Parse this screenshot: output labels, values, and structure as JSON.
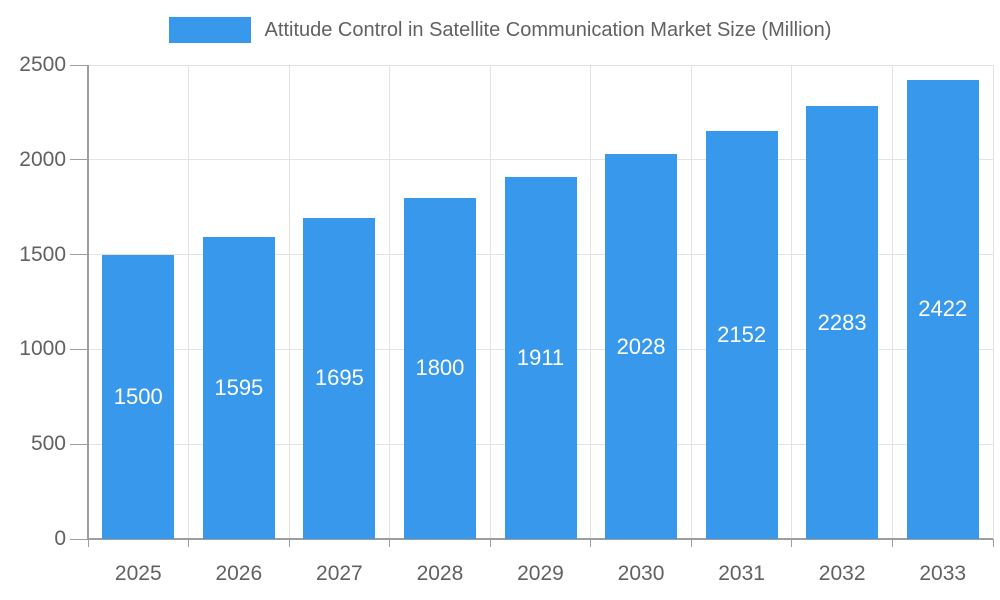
{
  "chart_data": {
    "type": "bar",
    "title": "Attitude Control in Satellite Communication Market Size (Million)",
    "categories": [
      "2025",
      "2026",
      "2027",
      "2028",
      "2029",
      "2030",
      "2031",
      "2032",
      "2033"
    ],
    "series": [
      {
        "name": "Attitude Control in Satellite Communication Market Size (Million)",
        "values": [
          1500,
          1595,
          1695,
          1800,
          1911,
          2028,
          2152,
          2283,
          2422
        ]
      }
    ],
    "xlabel": "",
    "ylabel": "",
    "ylim": [
      0,
      2500
    ],
    "yticks": [
      0,
      500,
      1000,
      1500,
      2000,
      2500
    ],
    "grid": true,
    "legend_position": "top",
    "value_labels": "inside-center",
    "bar_color": "#3898ec",
    "value_label_color": "#ffffff"
  },
  "colors": {
    "background": "#ffffff",
    "axis_line": "#9e9e9e",
    "gridline": "#e3e3e3",
    "tick": "#9e9e9e",
    "label_text": "#616161"
  }
}
